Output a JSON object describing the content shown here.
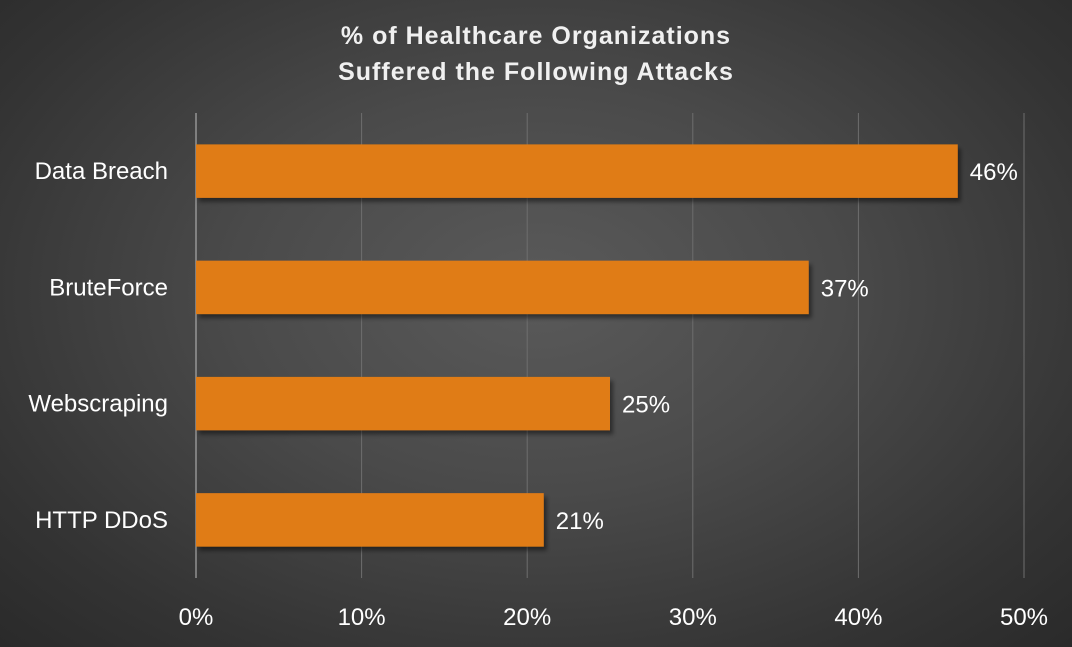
{
  "chart_data": {
    "type": "bar",
    "orientation": "horizontal",
    "title_lines": [
      "% of Healthcare Organizations",
      "Suffered the Following Attacks"
    ],
    "categories": [
      "Data Breach",
      "BruteForce",
      "Webscraping",
      "HTTP DDoS"
    ],
    "values": [
      46,
      37,
      25,
      21
    ],
    "data_labels": [
      "46%",
      "37%",
      "25%",
      "21%"
    ],
    "x_ticks": [
      "0%",
      "10%",
      "20%",
      "30%",
      "40%",
      "50%"
    ],
    "xlim": [
      0,
      50
    ],
    "grid": "vertical",
    "legend": "none",
    "bar_color": "#e07b18"
  }
}
